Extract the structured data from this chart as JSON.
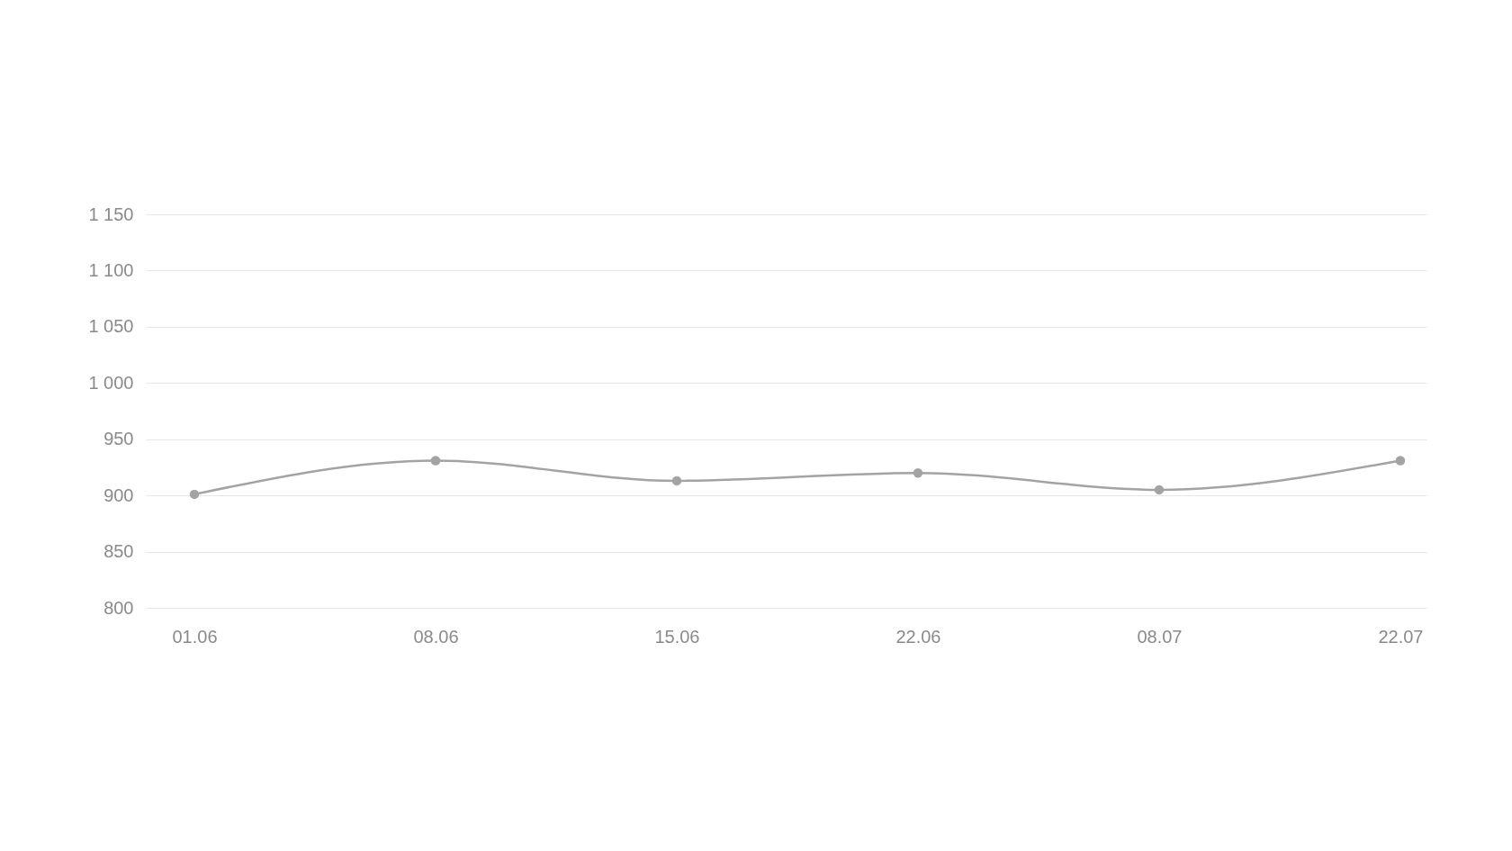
{
  "chart_data": {
    "type": "line",
    "categories": [
      "01.06",
      "08.06",
      "15.06",
      "22.06",
      "08.07",
      "22.07"
    ],
    "series": [
      {
        "color": "#a3a3a3",
        "values": [
          901,
          931,
          913,
          920,
          905,
          931
        ]
      }
    ],
    "ylim": [
      800,
      1150
    ],
    "yticks": [
      800,
      850,
      900,
      950,
      {
        "value": 1000,
        "label": "1 000"
      },
      {
        "value": 1050,
        "label": "1 050"
      },
      {
        "value": 1100,
        "label": "1 100"
      },
      {
        "value": 1150,
        "label": "1 150"
      }
    ],
    "grid": "y",
    "marker": "circle",
    "line_style": "solid"
  }
}
